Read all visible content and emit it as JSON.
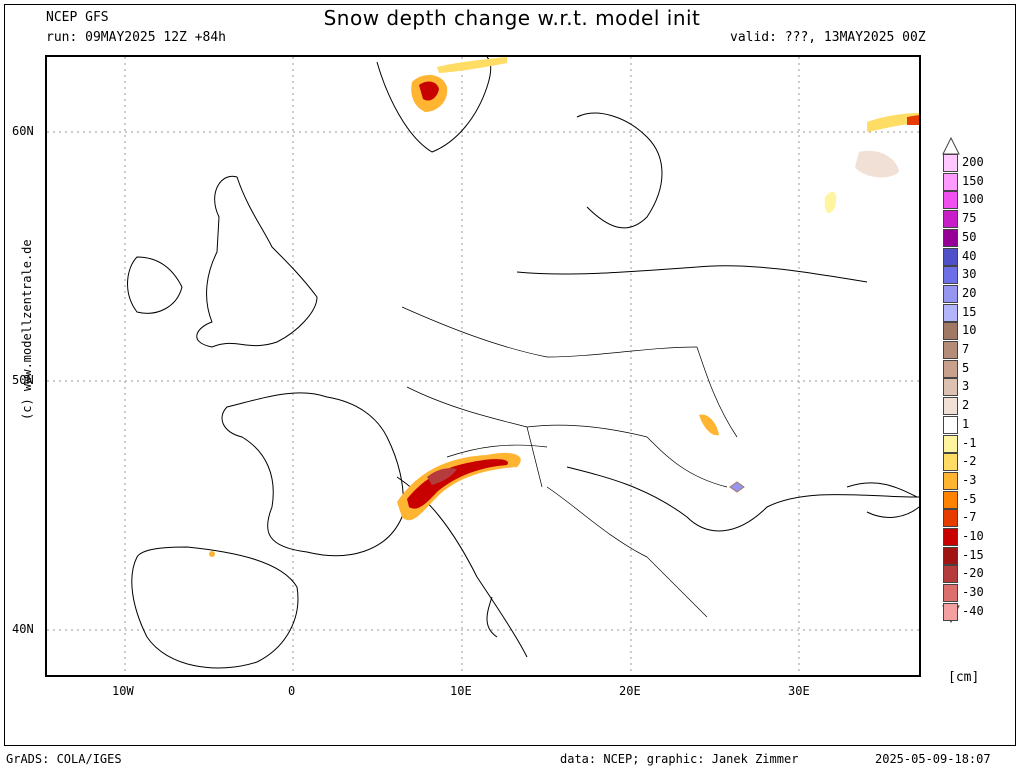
{
  "header": {
    "model": "NCEP GFS",
    "run": "run: 09MAY2025 12Z +84h",
    "title": "Snow depth change w.r.t. model init",
    "valid": "valid: ???, 13MAY2025 00Z"
  },
  "map": {
    "lat_labels": [
      "60N",
      "50N",
      "40N"
    ],
    "lon_labels": [
      "10W",
      "0",
      "10E",
      "20E",
      "30E"
    ],
    "credit": "(c) www.modellzentrale.de"
  },
  "legend": {
    "items": [
      {
        "label": "200",
        "color": "#ffc8ff"
      },
      {
        "label": "150",
        "color": "#ff9bff"
      },
      {
        "label": "100",
        "color": "#f050f0"
      },
      {
        "label": "75",
        "color": "#c81ec8"
      },
      {
        "label": "50",
        "color": "#960096"
      },
      {
        "label": "40",
        "color": "#5050c8"
      },
      {
        "label": "30",
        "color": "#6e6ee6"
      },
      {
        "label": "20",
        "color": "#9696f0"
      },
      {
        "label": "15",
        "color": "#b4b4fa"
      },
      {
        "label": "10",
        "color": "#a07864"
      },
      {
        "label": "7",
        "color": "#b48c78"
      },
      {
        "label": "5",
        "color": "#c8a08c"
      },
      {
        "label": "3",
        "color": "#dcc0b0"
      },
      {
        "label": "2",
        "color": "#f0e0d6"
      },
      {
        "label": "1",
        "color": "#ffffff"
      },
      {
        "label": "-1",
        "color": "#fff5a0"
      },
      {
        "label": "-2",
        "color": "#ffdc64"
      },
      {
        "label": "-3",
        "color": "#ffb432"
      },
      {
        "label": "-5",
        "color": "#ff8200"
      },
      {
        "label": "-7",
        "color": "#e63c00"
      },
      {
        "label": "-10",
        "color": "#c80000"
      },
      {
        "label": "-15",
        "color": "#a01414"
      },
      {
        "label": "-20",
        "color": "#b43c3c"
      },
      {
        "label": "-30",
        "color": "#dc6e6e"
      },
      {
        "label": "-40",
        "color": "#f5a0a0"
      }
    ],
    "unit": "[cm]"
  },
  "footer": {
    "left": "GrADS: COLA/IGES",
    "middle": "data: NCEP; graphic: Janek Zimmer",
    "right": "2025-05-09-18:07"
  }
}
